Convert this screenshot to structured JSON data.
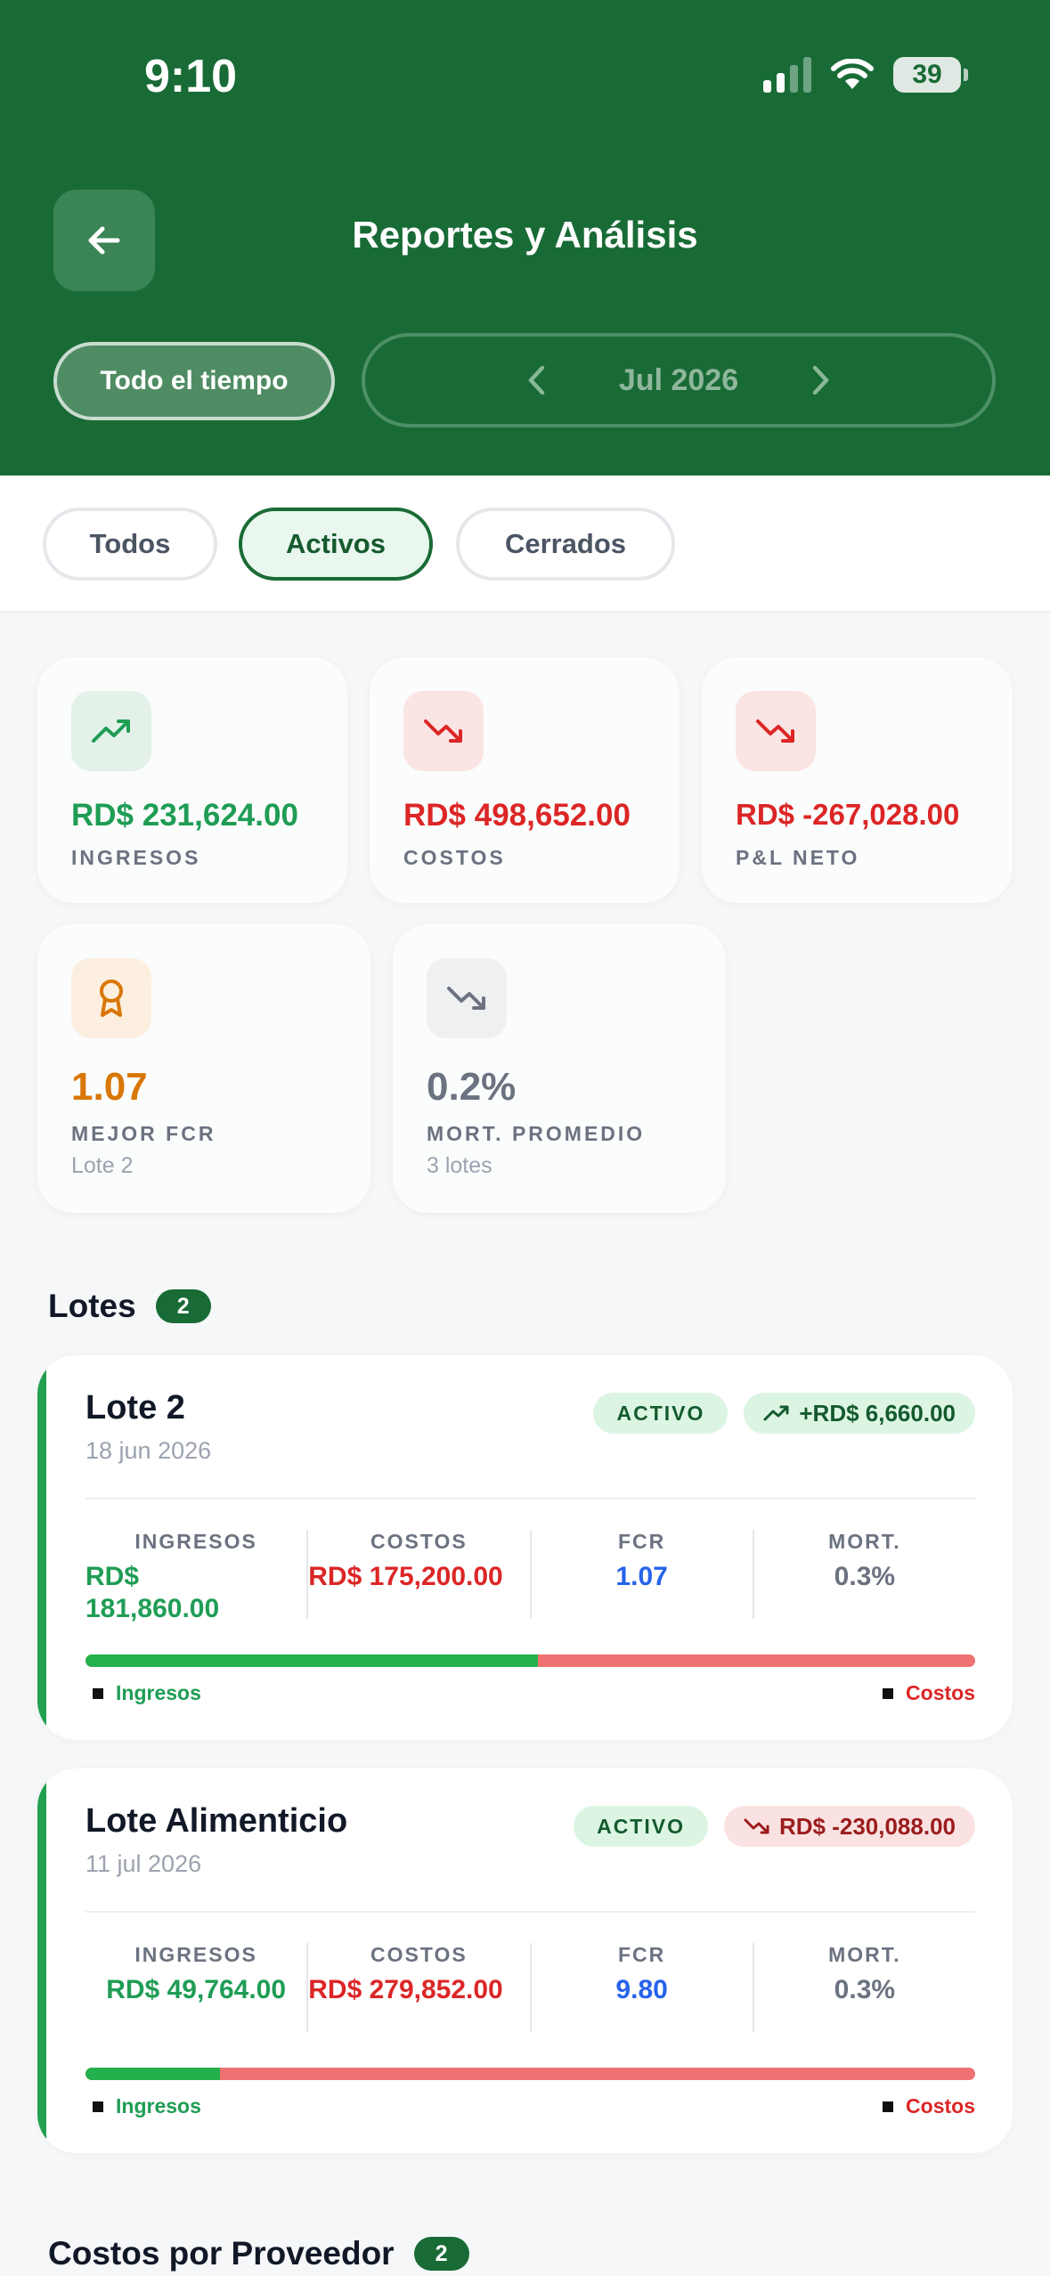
{
  "status_bar": {
    "time": "9:10",
    "battery": "39"
  },
  "header": {
    "title": "Reportes y Análisis",
    "all_time_label": "Todo el tiempo",
    "month": "Jul 2026"
  },
  "filters": [
    "Todos",
    "Activos",
    "Cerrados"
  ],
  "summary": {
    "ingresos": {
      "value": "RD$ 231,624.00",
      "label": "INGRESOS"
    },
    "costos": {
      "value": "RD$ 498,652.00",
      "label": "COSTOS"
    },
    "pl_neto": {
      "value": "RD$ -267,028.00",
      "label": "P&L NETO"
    },
    "mejor_fcr": {
      "value": "1.07",
      "label": "MEJOR FCR",
      "sub": "Lote 2"
    },
    "mortalidad": {
      "value": "0.2%",
      "label": "MORT. PROMEDIO",
      "sub": "3 lotes"
    }
  },
  "lots_section": {
    "title": "Lotes",
    "count": "2"
  },
  "metric_labels": {
    "ingresos": "INGRESOS",
    "costos": "COSTOS",
    "fcr": "FCR",
    "mort": "MORT."
  },
  "legend": {
    "ingresos": "Ingresos",
    "costos": "Costos"
  },
  "lots": [
    {
      "name": "Lote 2",
      "date": "18 jun 2026",
      "status": "ACTIVO",
      "pl": "+RD$ 6,660.00",
      "ingresos": "RD$ 181,860.00",
      "costos": "RD$ 175,200.00",
      "fcr": "1.07",
      "mort": "0.3%",
      "income_share": 0.509
    },
    {
      "name": "Lote Alimenticio",
      "date": "11 jul 2026",
      "status": "ACTIVO",
      "pl": "RD$ -230,088.00",
      "ingresos": "RD$ 49,764.00",
      "costos": "RD$ 279,852.00",
      "fcr": "9.80",
      "mort": "0.3%",
      "income_share": 0.151
    }
  ],
  "suppliers_section": {
    "title": "Costos por Proveedor",
    "count": "2"
  },
  "colors": {
    "brand": "#196b36",
    "income": "#1f9d55",
    "cost": "#dc2626",
    "fcr": "#2563eb",
    "best_fcr": "#d97706",
    "neutral": "#6b7280"
  }
}
